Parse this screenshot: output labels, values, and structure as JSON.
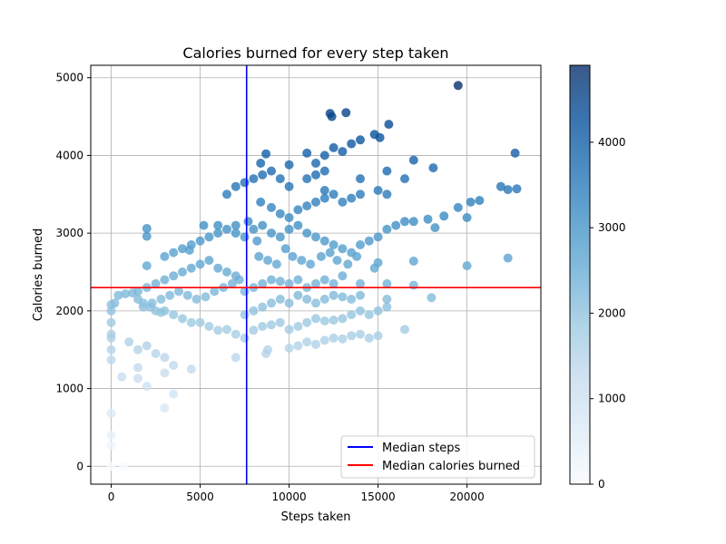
{
  "chart_data": {
    "type": "scatter",
    "title": "Calories burned for every step taken",
    "xlabel": "Steps taken",
    "ylabel": "Calories burned",
    "xlim": [
      -1150,
      24150
    ],
    "ylim": [
      -230,
      5160
    ],
    "xticks": [
      0,
      5000,
      10000,
      15000,
      20000
    ],
    "yticks": [
      0,
      1000,
      2000,
      3000,
      4000,
      5000
    ],
    "grid": true,
    "color_by": "calories",
    "colormap": "Blues",
    "colorbar": {
      "range": [
        0,
        4900
      ],
      "ticks": [
        0,
        1000,
        2000,
        3000,
        4000
      ]
    },
    "lines": [
      {
        "name": "Median steps",
        "orientation": "vertical",
        "value": 7610,
        "color": "#0000ff"
      },
      {
        "name": "Median calories burned",
        "orientation": "horizontal",
        "value": 2300,
        "color": "#ff0000"
      }
    ],
    "legend": {
      "position": "bottom-right",
      "entries": [
        "Median steps",
        "Median calories burned"
      ]
    },
    "points": [
      [
        0,
        0
      ],
      [
        0,
        270
      ],
      [
        0,
        400
      ],
      [
        0,
        680
      ],
      [
        700,
        0
      ],
      [
        3000,
        750
      ],
      [
        3500,
        930
      ],
      [
        2000,
        1030
      ],
      [
        1500,
        1130
      ],
      [
        600,
        1150
      ],
      [
        0,
        1370
      ],
      [
        0,
        1500
      ],
      [
        0,
        1650
      ],
      [
        0,
        1700
      ],
      [
        0,
        1850
      ],
      [
        0,
        2000
      ],
      [
        0,
        2080
      ],
      [
        200,
        2100
      ],
      [
        400,
        2200
      ],
      [
        800,
        2220
      ],
      [
        1200,
        2230
      ],
      [
        1500,
        2150
      ],
      [
        1800,
        2100
      ],
      [
        2200,
        2050
      ],
      [
        2500,
        2000
      ],
      [
        2800,
        1980
      ],
      [
        3000,
        2000
      ],
      [
        3500,
        1950
      ],
      [
        4000,
        1900
      ],
      [
        4500,
        1850
      ],
      [
        5000,
        1850
      ],
      [
        5500,
        1800
      ],
      [
        6000,
        1750
      ],
      [
        6500,
        1760
      ],
      [
        7000,
        1700
      ],
      [
        7500,
        1650
      ],
      [
        1000,
        1600
      ],
      [
        1500,
        1500
      ],
      [
        2000,
        1550
      ],
      [
        2500,
        1450
      ],
      [
        3000,
        1400
      ],
      [
        3500,
        1300
      ],
      [
        4500,
        1250
      ],
      [
        3000,
        1200
      ],
      [
        1500,
        1270
      ],
      [
        7000,
        1400
      ],
      [
        8700,
        1450
      ],
      [
        8800,
        1500
      ],
      [
        10000,
        1520
      ],
      [
        10500,
        1550
      ],
      [
        11000,
        1600
      ],
      [
        11500,
        1570
      ],
      [
        12000,
        1620
      ],
      [
        12500,
        1650
      ],
      [
        13000,
        1640
      ],
      [
        13500,
        1680
      ],
      [
        14000,
        1700
      ],
      [
        14500,
        1650
      ],
      [
        15000,
        1680
      ],
      [
        16500,
        1760
      ],
      [
        8000,
        1750
      ],
      [
        8500,
        1800
      ],
      [
        9000,
        1820
      ],
      [
        9500,
        1850
      ],
      [
        10000,
        1760
      ],
      [
        10500,
        1800
      ],
      [
        11000,
        1850
      ],
      [
        11500,
        1900
      ],
      [
        12000,
        1870
      ],
      [
        12500,
        1880
      ],
      [
        13000,
        1900
      ],
      [
        13500,
        1950
      ],
      [
        14000,
        2000
      ],
      [
        14500,
        1950
      ],
      [
        15000,
        2000
      ],
      [
        15500,
        2050
      ],
      [
        7500,
        1950
      ],
      [
        8000,
        2000
      ],
      [
        8500,
        2050
      ],
      [
        9000,
        2100
      ],
      [
        9500,
        2150
      ],
      [
        10000,
        2100
      ],
      [
        10500,
        2200
      ],
      [
        11000,
        2150
      ],
      [
        11500,
        2100
      ],
      [
        12000,
        2150
      ],
      [
        12500,
        2200
      ],
      [
        13000,
        2180
      ],
      [
        13500,
        2150
      ],
      [
        14000,
        2200
      ],
      [
        15500,
        2150
      ],
      [
        18000,
        2170
      ],
      [
        7500,
        2250
      ],
      [
        8000,
        2300
      ],
      [
        8500,
        2350
      ],
      [
        9000,
        2400
      ],
      [
        9500,
        2380
      ],
      [
        10000,
        2350
      ],
      [
        10500,
        2400
      ],
      [
        11000,
        2300
      ],
      [
        11500,
        2350
      ],
      [
        12000,
        2400
      ],
      [
        12500,
        2350
      ],
      [
        13000,
        2450
      ],
      [
        14000,
        2350
      ],
      [
        15500,
        2350
      ],
      [
        17000,
        2330
      ],
      [
        14800,
        2550
      ],
      [
        15000,
        2620
      ],
      [
        17000,
        2640
      ],
      [
        20000,
        2580
      ],
      [
        22300,
        2680
      ],
      [
        1500,
        2250
      ],
      [
        2000,
        2300
      ],
      [
        2500,
        2350
      ],
      [
        3000,
        2400
      ],
      [
        3500,
        2450
      ],
      [
        4000,
        2500
      ],
      [
        4500,
        2550
      ],
      [
        5000,
        2600
      ],
      [
        5500,
        2650
      ],
      [
        6000,
        2550
      ],
      [
        6500,
        2500
      ],
      [
        7000,
        2450
      ],
      [
        7200,
        2400
      ],
      [
        1800,
        2050
      ],
      [
        2300,
        2100
      ],
      [
        2800,
        2150
      ],
      [
        3300,
        2200
      ],
      [
        3800,
        2250
      ],
      [
        4300,
        2200
      ],
      [
        4800,
        2150
      ],
      [
        5300,
        2180
      ],
      [
        5800,
        2250
      ],
      [
        6300,
        2300
      ],
      [
        6800,
        2350
      ],
      [
        2000,
        2580
      ],
      [
        3000,
        2700
      ],
      [
        3500,
        2750
      ],
      [
        4000,
        2800
      ],
      [
        4500,
        2850
      ],
      [
        5000,
        2900
      ],
      [
        5500,
        2950
      ],
      [
        6000,
        3000
      ],
      [
        6500,
        3050
      ],
      [
        7000,
        3100
      ],
      [
        2000,
        2960
      ],
      [
        2000,
        3060
      ],
      [
        4400,
        2780
      ],
      [
        5200,
        3100
      ],
      [
        6000,
        3100
      ],
      [
        7000,
        3000
      ],
      [
        7500,
        2950
      ],
      [
        7700,
        3150
      ],
      [
        8000,
        3050
      ],
      [
        8200,
        2900
      ],
      [
        8500,
        3100
      ],
      [
        9000,
        3000
      ],
      [
        9500,
        2950
      ],
      [
        10000,
        3050
      ],
      [
        10500,
        3100
      ],
      [
        11000,
        3000
      ],
      [
        11500,
        2950
      ],
      [
        12000,
        2900
      ],
      [
        12500,
        2850
      ],
      [
        13000,
        2800
      ],
      [
        13500,
        2750
      ],
      [
        14000,
        2850
      ],
      [
        14500,
        2900
      ],
      [
        15000,
        2950
      ],
      [
        15500,
        3050
      ],
      [
        16000,
        3100
      ],
      [
        16500,
        3150
      ],
      [
        17000,
        3150
      ],
      [
        17800,
        3180
      ],
      [
        18200,
        3070
      ],
      [
        18700,
        3220
      ],
      [
        19500,
        3330
      ],
      [
        20000,
        3200
      ],
      [
        20200,
        3400
      ],
      [
        20700,
        3420
      ],
      [
        21900,
        3600
      ],
      [
        22300,
        3560
      ],
      [
        22800,
        3570
      ],
      [
        9800,
        2800
      ],
      [
        10200,
        2700
      ],
      [
        10700,
        2650
      ],
      [
        11200,
        2600
      ],
      [
        11800,
        2700
      ],
      [
        12300,
        2750
      ],
      [
        12700,
        2650
      ],
      [
        13300,
        2600
      ],
      [
        13800,
        2700
      ],
      [
        8300,
        2700
      ],
      [
        8800,
        2650
      ],
      [
        9300,
        2600
      ],
      [
        8400,
        3400
      ],
      [
        9000,
        3330
      ],
      [
        9500,
        3250
      ],
      [
        10000,
        3200
      ],
      [
        10500,
        3300
      ],
      [
        11000,
        3350
      ],
      [
        11500,
        3400
      ],
      [
        12000,
        3450
      ],
      [
        12500,
        3500
      ],
      [
        13000,
        3400
      ],
      [
        13500,
        3450
      ],
      [
        14000,
        3500
      ],
      [
        15000,
        3550
      ],
      [
        15500,
        3500
      ],
      [
        16500,
        3700
      ],
      [
        15500,
        3800
      ],
      [
        14000,
        3700
      ],
      [
        12000,
        3550
      ],
      [
        6500,
        3500
      ],
      [
        7000,
        3600
      ],
      [
        7500,
        3650
      ],
      [
        8000,
        3700
      ],
      [
        8500,
        3750
      ],
      [
        9000,
        3800
      ],
      [
        9500,
        3700
      ],
      [
        10000,
        3600
      ],
      [
        11000,
        3700
      ],
      [
        11500,
        3750
      ],
      [
        12000,
        3800
      ],
      [
        8400,
        3900
      ],
      [
        8700,
        4020
      ],
      [
        10000,
        3880
      ],
      [
        11000,
        4030
      ],
      [
        11500,
        3900
      ],
      [
        12000,
        4000
      ],
      [
        12500,
        4100
      ],
      [
        13000,
        4050
      ],
      [
        13500,
        4150
      ],
      [
        14000,
        4200
      ],
      [
        14800,
        4270
      ],
      [
        15100,
        4230
      ],
      [
        17000,
        3940
      ],
      [
        18100,
        3840
      ],
      [
        12300,
        4540
      ],
      [
        12400,
        4500
      ],
      [
        13200,
        4550
      ],
      [
        15600,
        4400
      ],
      [
        22700,
        4030
      ],
      [
        19500,
        4900
      ]
    ]
  }
}
